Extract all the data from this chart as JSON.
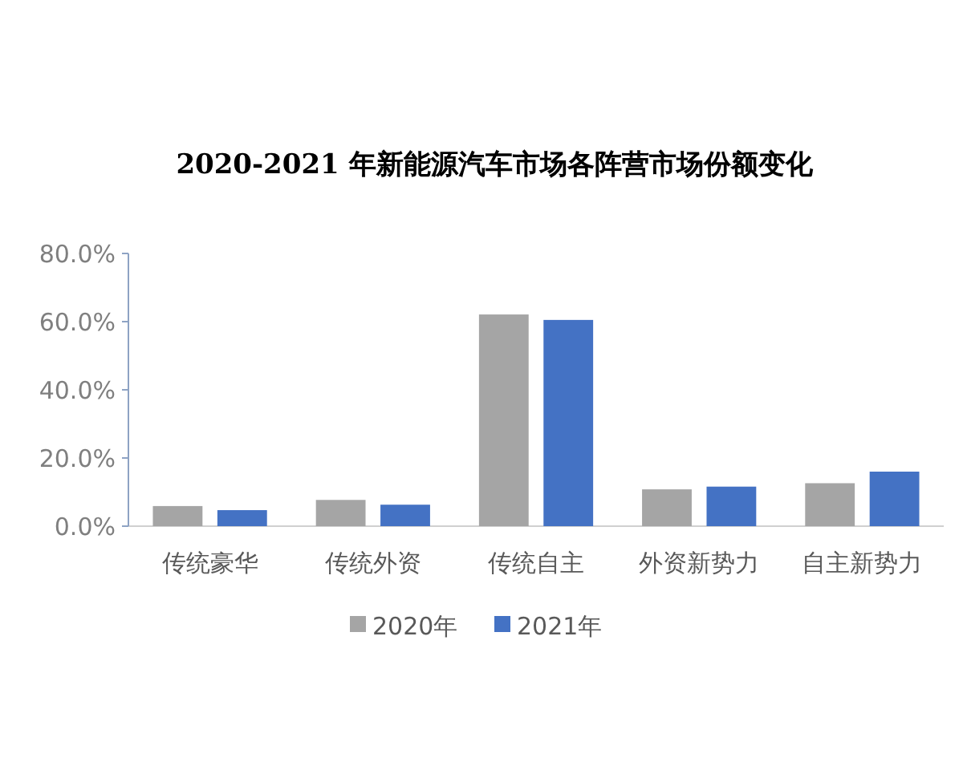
{
  "chart_data": {
    "type": "bar",
    "title": "2020-2021 年新能源汽车市场各阵营市场份额变化",
    "categories": [
      "传统豪华",
      "传统外资",
      "传统自主",
      "外资新势力",
      "自主新势力"
    ],
    "series": [
      {
        "name": "2020年",
        "color": "#a5a5a5",
        "values": [
          5.9,
          7.7,
          62.1,
          10.8,
          12.6
        ]
      },
      {
        "name": "2021年",
        "color": "#4472c4",
        "values": [
          4.7,
          6.3,
          60.5,
          11.6,
          16.0
        ]
      }
    ],
    "ylim": [
      0,
      80
    ],
    "yticks": [
      {
        "value": 0,
        "label": "0.0%"
      },
      {
        "value": 20,
        "label": "20.0%"
      },
      {
        "value": 40,
        "label": "40.0%"
      },
      {
        "value": 60,
        "label": "60.0%"
      },
      {
        "value": 80,
        "label": "80.0%"
      }
    ],
    "legend": "bottom"
  }
}
